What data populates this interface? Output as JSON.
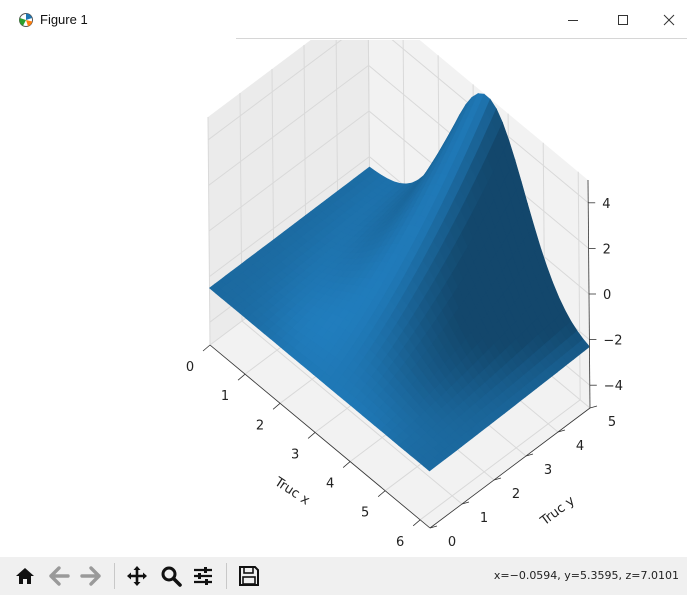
{
  "window": {
    "title": "Figure 1",
    "controls": {
      "minimize_icon": "minimize-icon",
      "maximize_icon": "maximize-icon",
      "close_icon": "close-icon"
    }
  },
  "chart_data": {
    "type": "surface",
    "surface_color": "#1f77b4",
    "xlabel": "Truc x",
    "ylabel": "Truc y",
    "zlabel": "",
    "xticks": [
      "0",
      "1",
      "2",
      "3",
      "4",
      "5",
      "6"
    ],
    "yticks": [
      "0",
      "1",
      "2",
      "3",
      "4",
      "5"
    ],
    "zticks": [
      "4",
      "2",
      "0",
      "−2",
      "−4"
    ],
    "xlim": [
      0,
      6.28
    ],
    "ylim": [
      0,
      5
    ],
    "zlim": [
      -5,
      5
    ],
    "grid": true,
    "grid_x": [
      0,
      1,
      2,
      3,
      4,
      5,
      6
    ],
    "grid_y": [
      0,
      1,
      2,
      3,
      4,
      5
    ],
    "grid_z": [
      -4,
      -2,
      0,
      2,
      4
    ],
    "pane_color": "#f2f2f2",
    "grid_color": "#d9d9d9"
  },
  "toolbar": {
    "home_icon": "home-icon",
    "back_icon": "back-arrow-icon",
    "forward_icon": "forward-arrow-icon",
    "pan_icon": "move-icon",
    "zoom_icon": "zoom-icon",
    "configure_icon": "sliders-icon",
    "save_icon": "save-icon",
    "coordinates": "x=−0.0594, y=5.3595, z=7.0101"
  }
}
